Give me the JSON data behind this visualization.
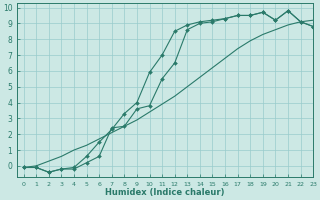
{
  "xlabel": "Humidex (Indice chaleur)",
  "ylabel": "",
  "bg_color": "#cce8e4",
  "grid_color": "#99cccc",
  "line_color": "#2a7a6a",
  "xlim": [
    -0.5,
    23
  ],
  "ylim": [
    -0.7,
    10.3
  ],
  "xticks": [
    0,
    1,
    2,
    3,
    4,
    5,
    6,
    7,
    8,
    9,
    10,
    11,
    12,
    13,
    14,
    15,
    16,
    17,
    18,
    19,
    20,
    21,
    22,
    23
  ],
  "yticks": [
    0,
    1,
    2,
    3,
    4,
    5,
    6,
    7,
    8,
    9,
    10
  ],
  "line1_x": [
    0,
    1,
    2,
    3,
    4,
    5,
    6,
    7,
    8,
    9,
    10,
    11,
    12,
    13,
    14,
    15,
    16,
    17,
    18,
    19,
    20,
    21,
    22,
    23
  ],
  "line1_y": [
    -0.1,
    -0.1,
    -0.4,
    -0.2,
    -0.1,
    0.6,
    1.5,
    2.3,
    3.3,
    4.0,
    5.9,
    7.0,
    8.5,
    8.9,
    9.1,
    9.2,
    9.3,
    9.5,
    9.5,
    9.7,
    9.2,
    9.8,
    9.1,
    8.8
  ],
  "line2_x": [
    0,
    1,
    2,
    3,
    4,
    5,
    6,
    7,
    8,
    9,
    10,
    11,
    12,
    13,
    14,
    15,
    16,
    17,
    18,
    19,
    20,
    21,
    22,
    23
  ],
  "line2_y": [
    -0.1,
    -0.1,
    -0.4,
    -0.2,
    -0.2,
    0.2,
    0.6,
    2.4,
    2.5,
    3.6,
    3.8,
    5.5,
    6.5,
    8.6,
    9.0,
    9.1,
    9.3,
    9.5,
    9.5,
    9.7,
    9.2,
    9.8,
    9.1,
    8.8
  ],
  "line3_x": [
    0,
    1,
    2,
    3,
    4,
    5,
    6,
    7,
    8,
    9,
    10,
    11,
    12,
    13,
    14,
    15,
    16,
    17,
    18,
    19,
    20,
    21,
    22,
    23
  ],
  "line3_y": [
    -0.1,
    0.0,
    0.3,
    0.6,
    1.0,
    1.3,
    1.7,
    2.1,
    2.5,
    2.9,
    3.4,
    3.9,
    4.4,
    5.0,
    5.6,
    6.2,
    6.8,
    7.4,
    7.9,
    8.3,
    8.6,
    8.9,
    9.1,
    9.2
  ]
}
